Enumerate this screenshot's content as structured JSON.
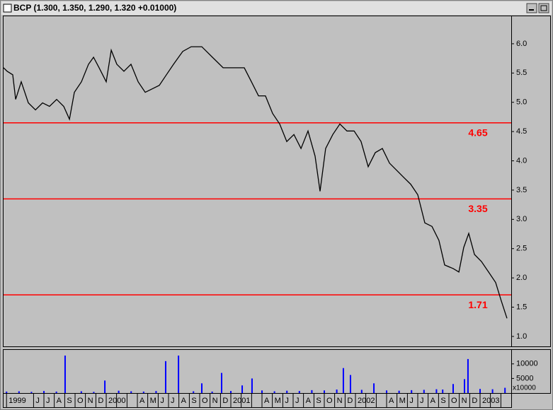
{
  "chart_data": [
    {
      "type": "line",
      "title": "BCP (1.300, 1.350, 1.290, 1.320 +0.01000)",
      "x": [
        1999.176,
        1999.205,
        1999.25,
        1999.273,
        1999.318,
        1999.375,
        1999.432,
        1999.489,
        1999.545,
        1999.602,
        1999.659,
        1999.705,
        1999.744,
        1999.801,
        1999.858,
        1999.898,
        1999.943,
        2000.0,
        2000.04,
        2000.085,
        2000.142,
        2000.199,
        2000.256,
        2000.313,
        2000.369,
        2000.426,
        2000.483,
        2000.54,
        2000.614,
        2000.682,
        2000.767,
        2000.852,
        2000.938,
        2001.023,
        2001.108,
        2001.165,
        2001.222,
        2001.278,
        2001.335,
        2001.392,
        2001.449,
        2001.506,
        2001.563,
        2001.619,
        2001.676,
        2001.716,
        2001.761,
        2001.818,
        2001.875,
        2001.932,
        2001.989,
        2002.045,
        2002.102,
        2002.159,
        2002.216,
        2002.273,
        2002.33,
        2002.386,
        2002.443,
        2002.5,
        2002.557,
        2002.614,
        2002.67,
        2002.716,
        2002.784,
        2002.83,
        2002.869,
        2002.909,
        2002.955,
        2003.011,
        2003.068,
        2003.125,
        2003.17,
        2003.216
      ],
      "series": [
        {
          "color": "#000000",
          "values": [
            5.59,
            5.53,
            5.47,
            5.05,
            5.35,
            4.99,
            4.87,
            4.99,
            4.93,
            5.05,
            4.93,
            4.71,
            5.17,
            5.35,
            5.65,
            5.77,
            5.59,
            5.35,
            5.89,
            5.65,
            5.53,
            5.65,
            5.35,
            5.17,
            5.23,
            5.29,
            5.47,
            5.65,
            5.87,
            5.95,
            5.95,
            5.77,
            5.59,
            5.59,
            5.59,
            5.35,
            5.11,
            5.11,
            4.81,
            4.63,
            4.33,
            4.45,
            4.21,
            4.51,
            4.08,
            3.48,
            4.21,
            4.45,
            4.63,
            4.51,
            4.51,
            4.33,
            3.9,
            4.14,
            4.21,
            3.96,
            3.84,
            3.72,
            3.6,
            3.42,
            2.94,
            2.88,
            2.64,
            2.22,
            2.16,
            2.1,
            2.52,
            2.76,
            2.4,
            2.28,
            2.1,
            1.92,
            1.61,
            1.31
          ]
        }
      ],
      "xlim": [
        1999.176,
        2003.25
      ],
      "ylim": [
        0.83,
        6.47
      ],
      "yticks": [
        {
          "value": 1,
          "label": "1.0"
        },
        1.5,
        {
          "value": 2,
          "label": "2.0"
        },
        2.5,
        {
          "value": 3,
          "label": "3.0"
        },
        3.5,
        {
          "value": 4,
          "label": "4.0"
        },
        4.5,
        {
          "value": 5,
          "label": "5.0"
        },
        5.5,
        {
          "value": 6,
          "label": "6.0"
        }
      ],
      "levels": [
        4.65,
        3.35,
        1.71
      ],
      "level_color": "#ff0000"
    },
    {
      "type": "bar",
      "x": [
        1999.2,
        1999.3,
        1999.4,
        1999.5,
        1999.6,
        1999.67,
        1999.8,
        1999.9,
        1999.989,
        2000.1,
        2000.2,
        2000.3,
        2000.4,
        2000.477,
        2000.58,
        2000.7,
        2000.767,
        2000.85,
        2000.926,
        2001.0,
        2001.091,
        2001.17,
        2001.25,
        2001.35,
        2001.45,
        2001.55,
        2001.65,
        2001.75,
        2001.85,
        2001.903,
        2001.96,
        2002.05,
        2002.148,
        2002.25,
        2002.35,
        2002.45,
        2002.55,
        2002.65,
        2002.7,
        2002.784,
        2002.875,
        2002.903,
        2003.0,
        2003.1,
        2003.2
      ],
      "values": [
        500,
        600,
        400,
        700,
        500,
        12860,
        600,
        400,
        4290,
        800,
        600,
        500,
        700,
        10950,
        12860,
        600,
        3330,
        500,
        6900,
        700,
        2620,
        5000,
        900,
        600,
        800,
        700,
        1000,
        900,
        1200,
        8570,
        6190,
        1100,
        3330,
        900,
        800,
        1000,
        1100,
        1300,
        1200,
        3100,
        4760,
        11670,
        1400,
        1300,
        1800
      ],
      "color": "#0000ff",
      "xlim": [
        1999.176,
        2003.25
      ],
      "ylim": [
        0,
        14800
      ],
      "yticks": [
        5000,
        10000
      ],
      "y_unit_label": "x10000",
      "xticks": [
        {
          "value": 1999.2,
          "label": "1999"
        },
        {
          "value": 1999.417,
          "label": "J"
        },
        {
          "value": 1999.5,
          "label": "J"
        },
        {
          "value": 1999.583,
          "label": "A"
        },
        {
          "value": 1999.667,
          "label": "S"
        },
        {
          "value": 1999.75,
          "label": "O"
        },
        {
          "value": 1999.833,
          "label": "N"
        },
        {
          "value": 1999.917,
          "label": "D"
        },
        2000,
        {
          "value": 2000.25,
          "label": "A"
        },
        {
          "value": 2000.333,
          "label": "M"
        },
        {
          "value": 2000.417,
          "label": "J"
        },
        {
          "value": 2000.5,
          "label": "J"
        },
        {
          "value": 2000.583,
          "label": "A"
        },
        {
          "value": 2000.667,
          "label": "S"
        },
        {
          "value": 2000.75,
          "label": "O"
        },
        {
          "value": 2000.833,
          "label": "N"
        },
        {
          "value": 2000.917,
          "label": "D"
        },
        2001,
        {
          "value": 2001.25,
          "label": "A"
        },
        {
          "value": 2001.333,
          "label": "M"
        },
        {
          "value": 2001.417,
          "label": "J"
        },
        {
          "value": 2001.5,
          "label": "J"
        },
        {
          "value": 2001.583,
          "label": "A"
        },
        {
          "value": 2001.667,
          "label": "S"
        },
        {
          "value": 2001.75,
          "label": "O"
        },
        {
          "value": 2001.833,
          "label": "N"
        },
        {
          "value": 2001.917,
          "label": "D"
        },
        2002,
        {
          "value": 2002.25,
          "label": "A"
        },
        {
          "value": 2002.333,
          "label": "M"
        },
        {
          "value": 2002.417,
          "label": "J"
        },
        {
          "value": 2002.5,
          "label": "J"
        },
        {
          "value": 2002.583,
          "label": "A"
        },
        {
          "value": 2002.667,
          "label": "S"
        },
        {
          "value": 2002.75,
          "label": "O"
        },
        {
          "value": 2002.833,
          "label": "N"
        },
        {
          "value": 2002.917,
          "label": "D"
        },
        2003
      ],
      "xminorticks": [
        2000.083,
        2000.167,
        2001.083,
        2001.167,
        2002.083,
        2002.167,
        2003.083,
        2003.167
      ]
    }
  ]
}
